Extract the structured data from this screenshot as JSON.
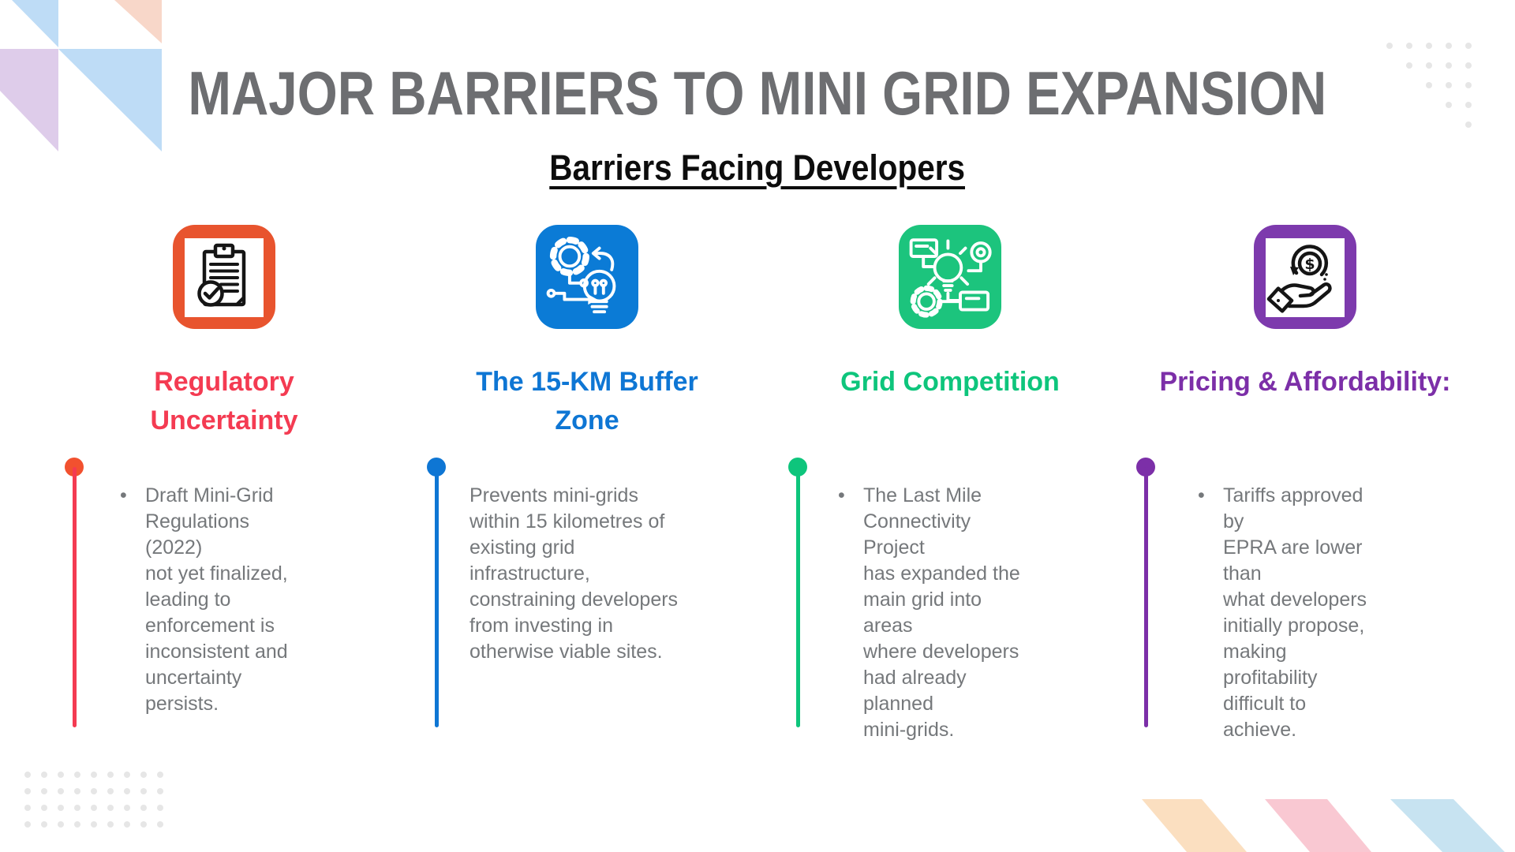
{
  "header": {
    "title": "MAJOR BARRIERS TO MINI GRID EXPANSION",
    "title_color": "#6D6E71",
    "subtitle": "Barriers Facing Developers",
    "subtitle_color": "#0d0d0d"
  },
  "columns": [
    {
      "id": "regulatory-uncertainty",
      "icon": "clipboard-check-icon",
      "icon_bg": "#E8542E",
      "accent": "#F43B52",
      "dot_color": "#F2512F",
      "heading": "Regulatory\nUncertainty",
      "bullet_marker": true,
      "bullet": "Draft Mini-Grid\nRegulations (2022)\nnot yet finalized,\nleading to\nenforcement is\ninconsistent and\nuncertainty persists."
    },
    {
      "id": "buffer-zone",
      "icon": "gear-bulb-icon",
      "icon_bg": "#0B7BD6",
      "accent": "#0E76D4",
      "dot_color": "#0E76D4",
      "heading": "The 15-KM Buffer\nZone",
      "bullet_marker": false,
      "bullet": "Prevents mini-grids\nwithin 15 kilometres of\nexisting grid\ninfrastructure,\nconstraining developers\nfrom investing in\notherwise viable sites."
    },
    {
      "id": "grid-competition",
      "icon": "idea-network-icon",
      "icon_bg": "#1CC47D",
      "accent": "#0EC57C",
      "dot_color": "#0EC57C",
      "heading": "Grid Competition",
      "bullet_marker": true,
      "bullet": "The Last Mile\nConnectivity Project\nhas expanded the\nmain grid into areas\nwhere developers\nhad already planned\nmini-grids."
    },
    {
      "id": "pricing-affordability",
      "icon": "hand-coin-icon",
      "icon_bg": "#7D3AAD",
      "accent": "#7C2FA8",
      "dot_color": "#7C2FA8",
      "heading": "Pricing & Affordability:",
      "bullet_marker": true,
      "bullet": "Tariffs approved by\nEPRA are lower than\nwhat developers\ninitially propose,\nmaking profitability\ndifficult to achieve."
    }
  ],
  "decor": {
    "dot_grid_color": "#E6E6E6",
    "corner_triangle_colors": [
      "#BEDCF6",
      "#F8D7C9",
      "#DECCEA"
    ],
    "bottom_stripe_colors": [
      "#FBDFC0",
      "#F9C8D2",
      "#C7E3F1"
    ]
  }
}
